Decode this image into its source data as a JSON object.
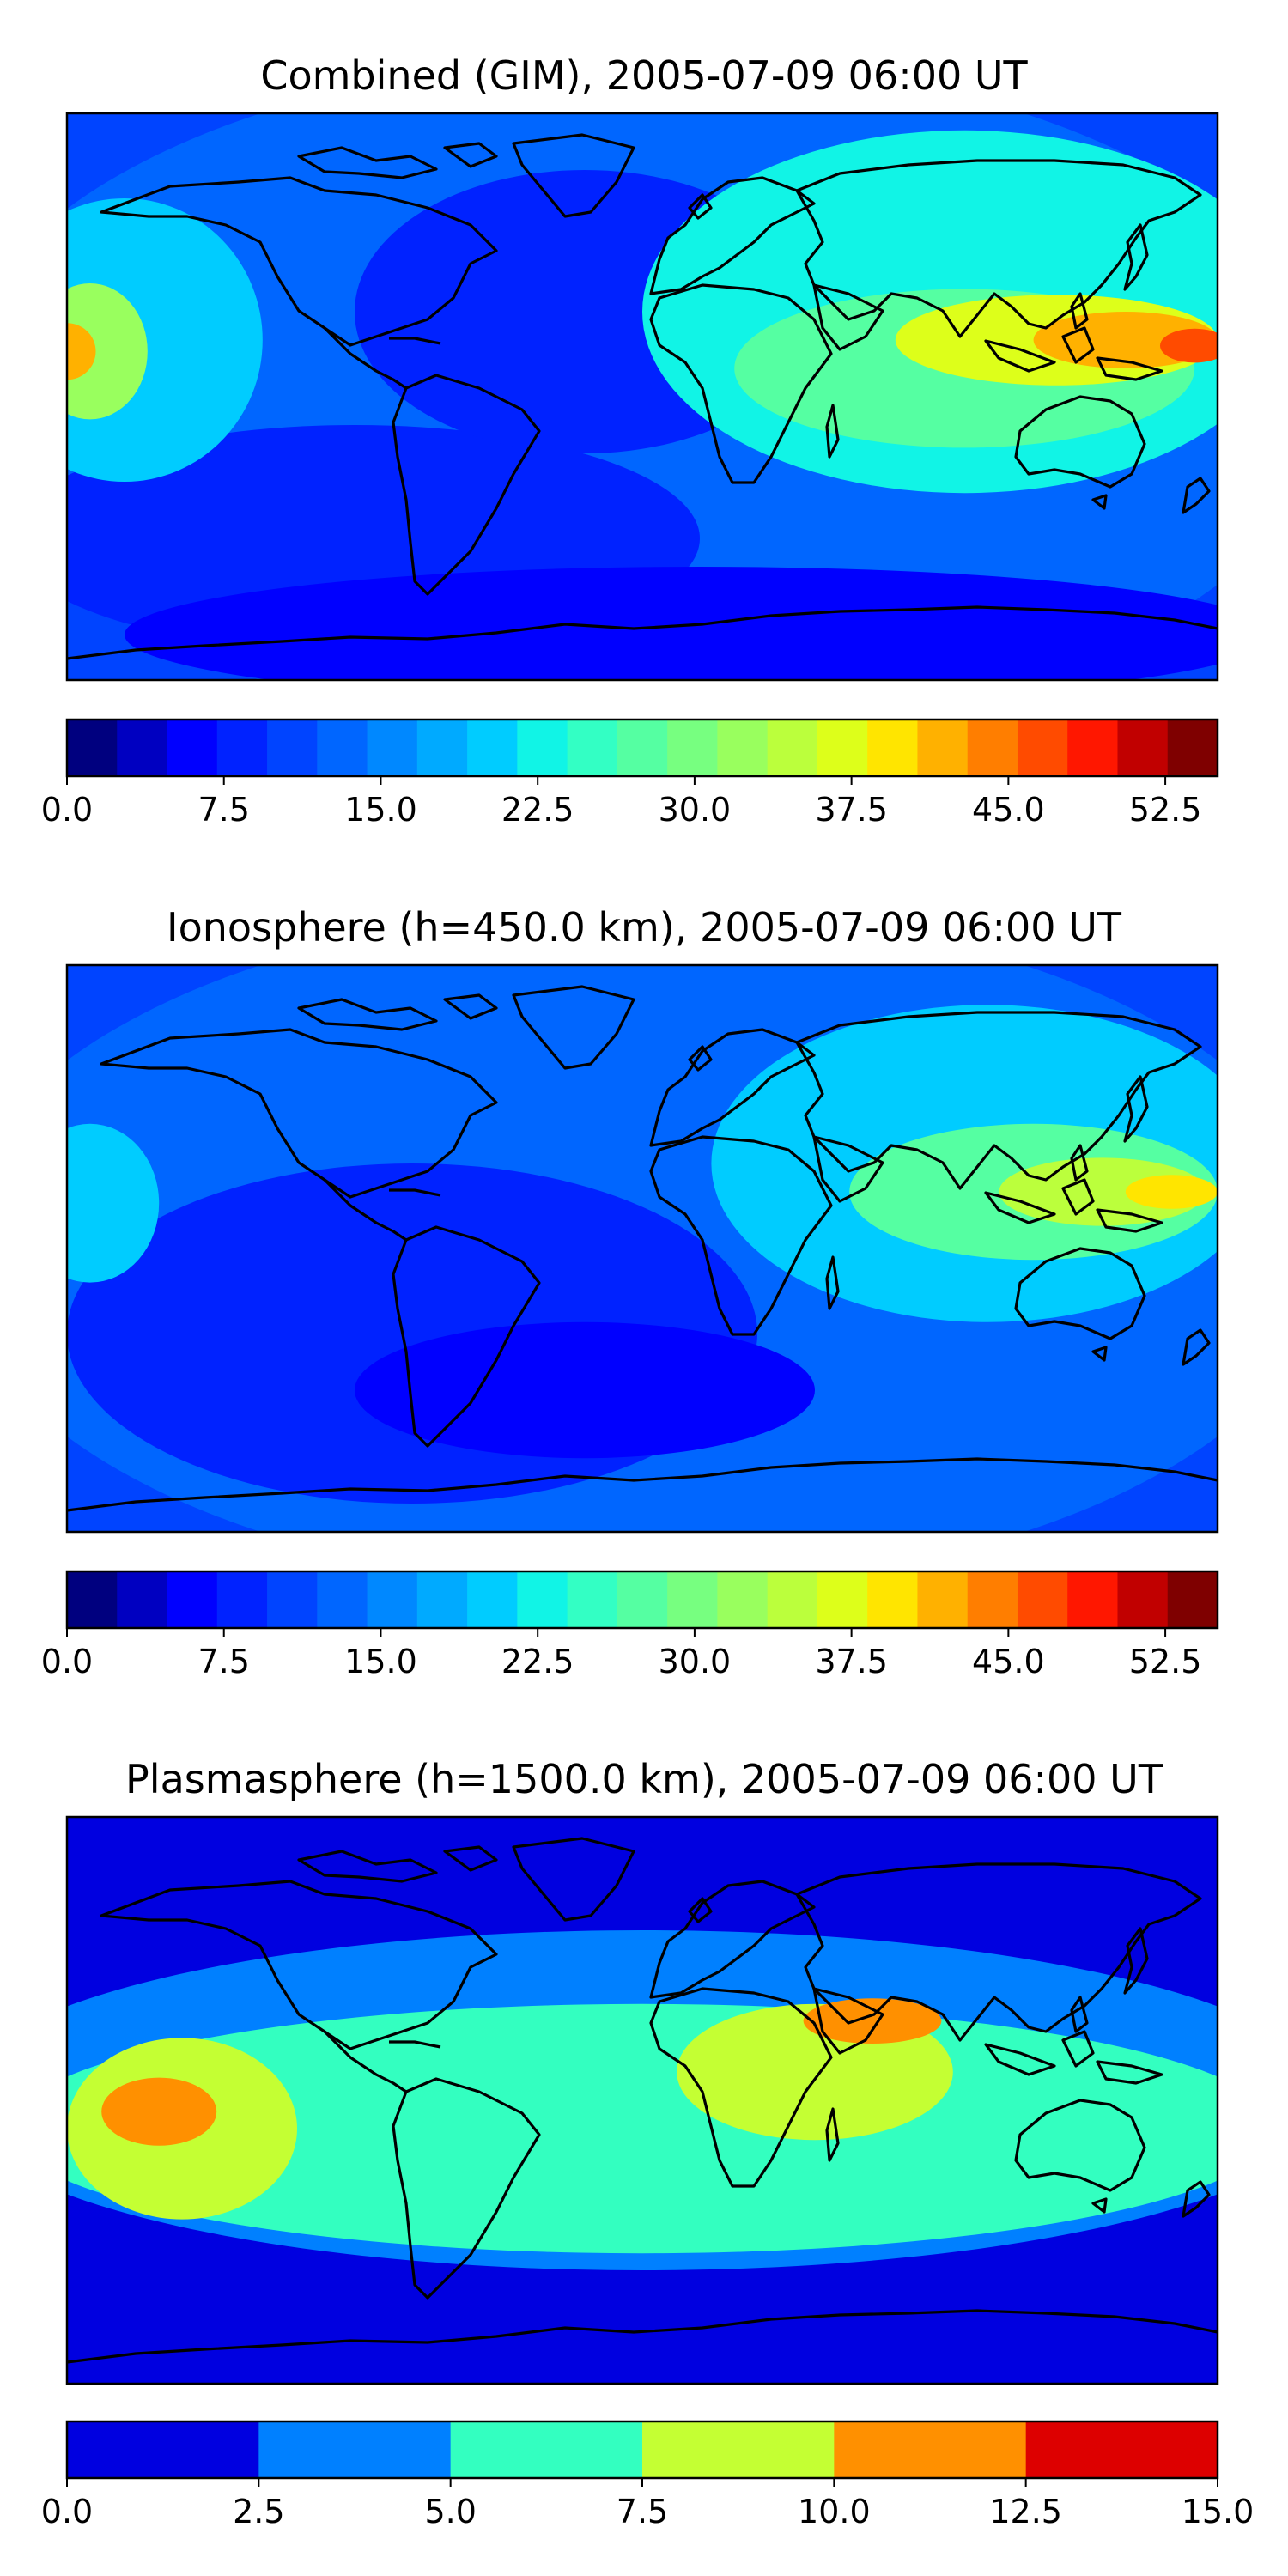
{
  "figure": {
    "panels": [
      {
        "id": "combined",
        "title": "Combined (GIM), 2005-07-09 06:00 UT",
        "colorbar": {
          "min": 0.0,
          "max": 55.0,
          "levels": 22,
          "ticks": [
            "0.0",
            "7.5",
            "15.0",
            "22.5",
            "30.0",
            "37.5",
            "45.0",
            "52.5"
          ],
          "colors": [
            "#00007f",
            "#0000c1",
            "#0000ff",
            "#0022ff",
            "#0044ff",
            "#0066ff",
            "#0088ff",
            "#00aaff",
            "#00ccff",
            "#11f4e6",
            "#33ffc4",
            "#55ffa2",
            "#77ff80",
            "#99ff5e",
            "#bbff3c",
            "#ddff1a",
            "#ffe500",
            "#ffb100",
            "#ff7e00",
            "#ff4b00",
            "#ff1700",
            "#c10000",
            "#7f0000"
          ]
        }
      },
      {
        "id": "ionosphere",
        "title": "Ionosphere  (h=450.0 km), 2005-07-09 06:00 UT",
        "colorbar": {
          "min": 0.0,
          "max": 55.0,
          "levels": 22,
          "ticks": [
            "0.0",
            "7.5",
            "15.0",
            "22.5",
            "30.0",
            "37.5",
            "45.0",
            "52.5"
          ],
          "colors": [
            "#00007f",
            "#0000c1",
            "#0000ff",
            "#0022ff",
            "#0044ff",
            "#0066ff",
            "#0088ff",
            "#00aaff",
            "#00ccff",
            "#11f4e6",
            "#33ffc4",
            "#55ffa2",
            "#77ff80",
            "#99ff5e",
            "#bbff3c",
            "#ddff1a",
            "#ffe500",
            "#ffb100",
            "#ff7e00",
            "#ff4b00",
            "#ff1700",
            "#c10000",
            "#7f0000"
          ]
        }
      },
      {
        "id": "plasmasphere",
        "title": "Plasmasphere (h=1500.0 km), 2005-07-09 06:00 UT",
        "colorbar": {
          "min": 0.0,
          "max": 15.0,
          "levels": 6,
          "ticks": [
            "0.0",
            "2.5",
            "5.0",
            "7.5",
            "10.0",
            "12.5",
            "15.0"
          ],
          "colors": [
            "#0000e0",
            "#0080ff",
            "#33ffc0",
            "#c4ff33",
            "#ff9000",
            "#dd0000"
          ]
        }
      }
    ]
  }
}
